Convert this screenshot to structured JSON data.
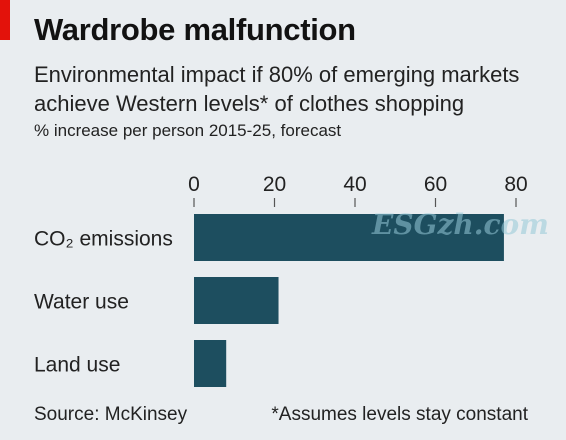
{
  "header": {
    "title": "Wardrobe malfunction",
    "subtitle": "Environmental impact if 80% of emerging markets achieve Western levels* of clothes shopping",
    "unit": "% increase per person 2015-25, forecast"
  },
  "footer": {
    "source": "Source: McKinsey",
    "note": "*Assumes levels stay constant"
  },
  "watermark": "ESGzh.com",
  "colors": {
    "bar": "#1d4e5f",
    "accent": "#e3120b",
    "background": "#e9edf0"
  },
  "chart_data": {
    "type": "bar",
    "orientation": "horizontal",
    "categories": [
      "CO₂ emissions",
      "Water use",
      "Land use"
    ],
    "values": [
      77,
      21,
      8
    ],
    "xlim": [
      0,
      80
    ],
    "xticks": [
      0,
      20,
      40,
      60,
      80
    ],
    "x_axis_position": "top",
    "grid": false,
    "legend": "none"
  }
}
